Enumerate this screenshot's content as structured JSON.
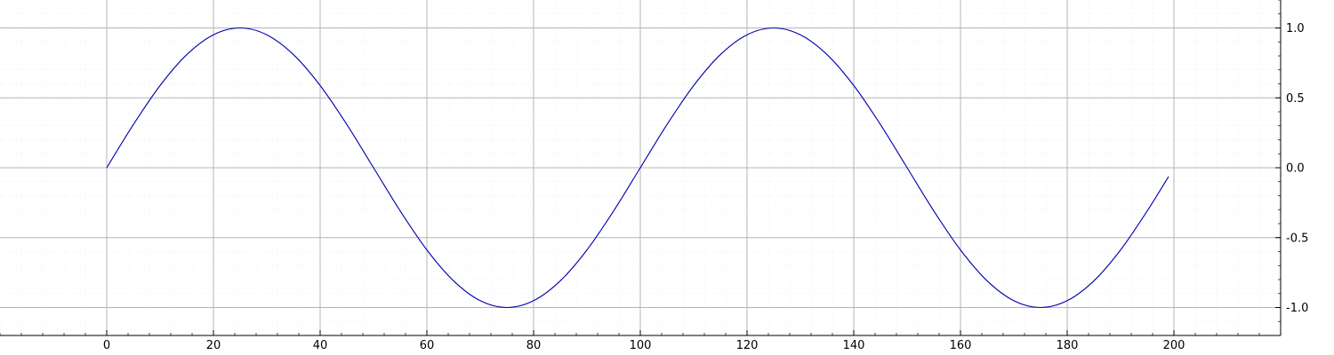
{
  "chart_data": {
    "type": "line",
    "title": "",
    "xlabel": "",
    "ylabel": "",
    "xlim": [
      -20,
      220
    ],
    "ylim": [
      -1.2,
      1.2
    ],
    "grid": true,
    "y_axis_side": "right",
    "x_major_ticks": [
      0,
      20,
      40,
      60,
      80,
      100,
      120,
      140,
      160,
      180,
      200
    ],
    "x_tick_labels": [
      "0",
      "20",
      "40",
      "60",
      "80",
      "100",
      "120",
      "140",
      "160",
      "180",
      "200"
    ],
    "y_major_ticks": [
      -1.0,
      -0.5,
      0.0,
      0.5,
      1.0
    ],
    "y_tick_labels": [
      "-1.0",
      "-0.5",
      "0.0",
      "0.5",
      "1.0"
    ],
    "series": [
      {
        "color": "#0000aa",
        "x": [
          0,
          5,
          10,
          15,
          20,
          25,
          30,
          35,
          40,
          45,
          50,
          55,
          60,
          65,
          70,
          75,
          80,
          85,
          90,
          95,
          100,
          105,
          110,
          115,
          120,
          125,
          130,
          135,
          140,
          145,
          150,
          155,
          160,
          165,
          170,
          175,
          180,
          185,
          190,
          195,
          199
        ],
        "y": [
          0.0,
          0.309,
          0.588,
          0.809,
          0.951,
          1.0,
          0.951,
          0.809,
          0.588,
          0.309,
          0.0,
          -0.309,
          -0.588,
          -0.809,
          -0.951,
          -1.0,
          -0.951,
          -0.809,
          -0.588,
          -0.309,
          0.0,
          0.309,
          0.588,
          0.809,
          0.951,
          1.0,
          0.951,
          0.809,
          0.588,
          0.309,
          0.0,
          -0.309,
          -0.588,
          -0.809,
          -0.951,
          -1.0,
          -0.951,
          -0.809,
          -0.588,
          -0.309,
          -0.063
        ]
      }
    ]
  }
}
